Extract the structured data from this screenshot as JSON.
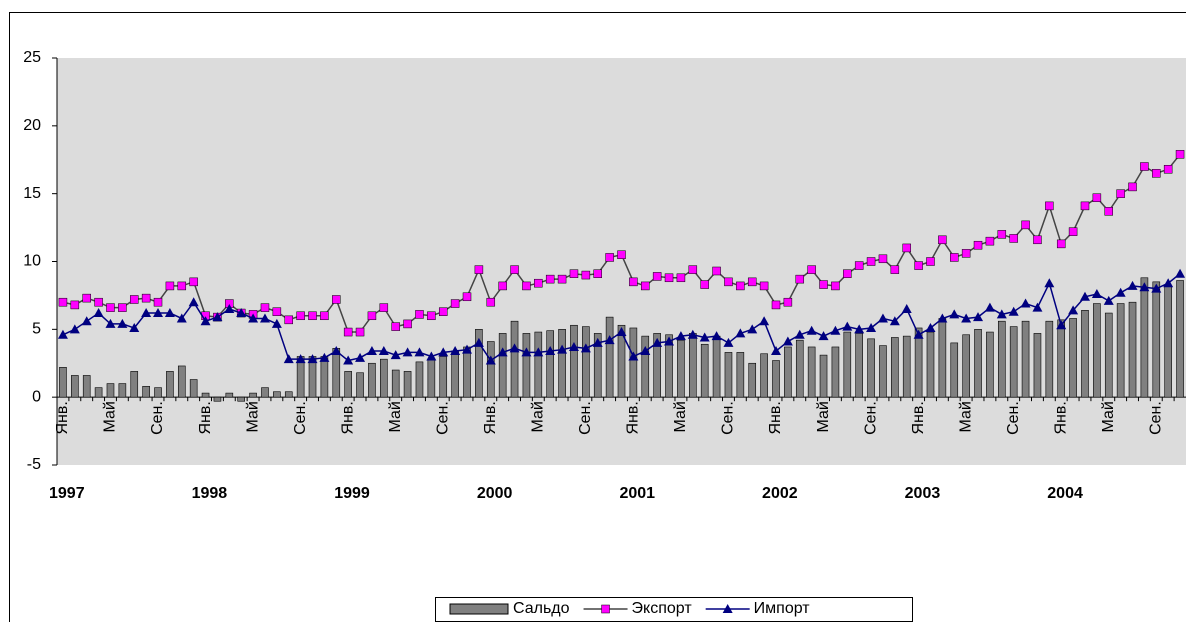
{
  "chart_data": {
    "type": "bar_line",
    "categories": [
      "Янв.",
      null,
      null,
      null,
      "Май",
      null,
      null,
      null,
      "Сен.",
      null,
      null,
      null,
      "Янв.",
      null,
      null,
      null,
      "Май",
      null,
      null,
      null,
      "Сен.",
      null,
      null,
      null,
      "Янв.",
      null,
      null,
      null,
      "Май",
      null,
      null,
      null,
      "Сен.",
      null,
      null,
      null,
      "Янв.",
      null,
      null,
      null,
      "Май",
      null,
      null,
      null,
      "Сен.",
      null,
      null,
      null,
      "Янв.",
      null,
      null,
      null,
      "Май",
      null,
      null,
      null,
      "Сен.",
      null,
      null,
      null,
      "Янв.",
      null,
      null,
      null,
      "Май",
      null,
      null,
      null,
      "Сен.",
      null,
      null,
      null,
      "Янв.",
      null,
      null,
      null,
      "Май",
      null,
      null,
      null,
      "Сен.",
      null,
      null,
      null,
      "Янв.",
      null,
      null,
      null,
      "Май",
      null,
      null,
      null,
      "Сен.",
      null,
      null
    ],
    "years": [
      "1997",
      "1998",
      "1999",
      "2000",
      "2001",
      "2002",
      "2003",
      "2004"
    ],
    "ylim": [
      -5,
      25
    ],
    "yticks": [
      -5,
      0,
      5,
      10,
      15,
      20,
      25
    ],
    "series": [
      {
        "name": "Сальдо",
        "kind": "bar",
        "color": "#808080",
        "values": [
          2.2,
          1.6,
          1.6,
          0.7,
          1.0,
          1.0,
          1.9,
          0.8,
          0.7,
          1.9,
          2.3,
          1.3,
          0.3,
          -0.3,
          0.3,
          -0.3,
          0.3,
          0.7,
          0.4,
          0.4,
          3.0,
          3.0,
          3.0,
          3.6,
          1.9,
          1.8,
          2.5,
          2.8,
          2.0,
          1.9,
          2.6,
          2.8,
          3.0,
          3.4,
          3.7,
          5.0,
          4.1,
          4.7,
          5.6,
          4.7,
          4.8,
          4.9,
          5.0,
          5.3,
          5.2,
          4.7,
          5.9,
          5.3,
          5.1,
          4.5,
          4.7,
          4.6,
          4.2,
          4.7,
          3.9,
          4.5,
          3.3,
          3.3,
          2.5,
          3.2,
          2.7,
          3.7,
          4.2,
          3.7,
          3.1,
          3.7,
          4.8,
          4.7,
          4.3,
          3.8,
          4.4,
          4.5,
          5.1,
          4.8,
          5.8,
          4.0,
          4.6,
          5.0,
          4.8,
          5.6,
          5.2,
          5.6,
          4.7,
          5.6,
          5.7,
          5.8,
          6.4,
          6.9,
          6.2,
          6.9,
          7.0,
          8.8,
          8.5,
          8.2,
          8.6
        ]
      },
      {
        "name": "Экспорт",
        "kind": "line",
        "marker": "square",
        "color": "#ff00ff",
        "values": [
          7.0,
          6.8,
          7.3,
          7.0,
          6.6,
          6.6,
          7.2,
          7.3,
          7.0,
          8.2,
          8.2,
          8.5,
          6.0,
          5.9,
          6.9,
          6.2,
          6.1,
          6.6,
          6.3,
          5.7,
          6.0,
          6.0,
          6.0,
          7.2,
          4.8,
          4.8,
          6.0,
          6.6,
          5.2,
          5.4,
          6.1,
          6.0,
          6.3,
          6.9,
          7.4,
          9.4,
          7.0,
          8.2,
          9.4,
          8.2,
          8.4,
          8.7,
          8.7,
          9.1,
          9.0,
          9.1,
          10.3,
          10.5,
          8.5,
          8.2,
          8.9,
          8.8,
          8.8,
          9.4,
          8.3,
          9.3,
          8.5,
          8.2,
          8.5,
          8.2,
          6.8,
          7.0,
          8.7,
          9.4,
          8.3,
          8.2,
          9.1,
          9.7,
          10.0,
          10.2,
          9.4,
          11.0,
          9.7,
          10.0,
          11.6,
          10.3,
          10.6,
          11.2,
          11.5,
          12.0,
          11.7,
          12.7,
          11.6,
          14.1,
          11.3,
          12.2,
          14.1,
          14.7,
          13.7,
          15.0,
          15.5,
          17.0,
          16.5,
          16.8,
          17.9
        ]
      },
      {
        "name": "Импорт",
        "kind": "line",
        "marker": "triangle",
        "color": "#000080",
        "values": [
          4.6,
          5.0,
          5.6,
          6.2,
          5.4,
          5.4,
          5.1,
          6.2,
          6.2,
          6.2,
          5.8,
          7.0,
          5.6,
          5.9,
          6.5,
          6.2,
          5.8,
          5.8,
          5.4,
          2.8,
          2.8,
          2.8,
          2.9,
          3.4,
          2.7,
          2.9,
          3.4,
          3.4,
          3.1,
          3.3,
          3.3,
          3.0,
          3.3,
          3.4,
          3.5,
          4.0,
          2.7,
          3.3,
          3.6,
          3.3,
          3.3,
          3.4,
          3.5,
          3.7,
          3.6,
          4.0,
          4.2,
          4.8,
          3.0,
          3.4,
          4.0,
          4.1,
          4.5,
          4.6,
          4.4,
          4.5,
          4.0,
          4.7,
          5.0,
          5.6,
          3.4,
          4.1,
          4.6,
          4.9,
          4.5,
          4.9,
          5.2,
          5.0,
          5.1,
          5.8,
          5.6,
          6.5,
          4.6,
          5.1,
          5.8,
          6.1,
          5.8,
          5.9,
          6.6,
          6.1,
          6.3,
          6.9,
          6.6,
          8.4,
          5.3,
          6.4,
          7.4,
          7.6,
          7.1,
          7.7,
          8.2,
          8.1,
          8.0,
          8.4,
          9.1
        ]
      }
    ]
  }
}
